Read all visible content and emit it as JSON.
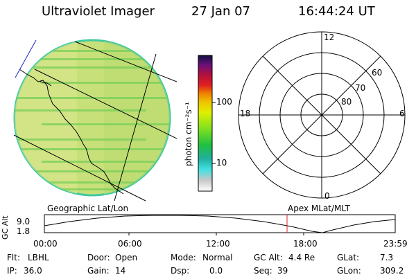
{
  "header": {
    "instrument": "Ultraviolet Imager",
    "date": "27 Jan 07",
    "time": "16:44:24 UT"
  },
  "colorbar": {
    "unit_label": "photon cm⁻²s⁻¹",
    "tick_labels": [
      "100",
      "10"
    ]
  },
  "polar_plot": {
    "mlt_labels": [
      "12",
      "18",
      "6",
      "0"
    ],
    "lat_labels": [
      "60",
      "70",
      "80"
    ]
  },
  "orbit": {
    "left_label": "Geographic Lat/Lon",
    "right_label": "Apex MLat/MLT",
    "y_axis_label": "GC Alt",
    "y_ticks": [
      "9.0",
      "1.8"
    ],
    "x_ticks": [
      "00:00",
      "06:00",
      "12:00",
      "18:00",
      "23:59"
    ],
    "current_time_marker": "16:44:24"
  },
  "info": {
    "row1": [
      {
        "key": "Flt:",
        "value": "LBHL"
      },
      {
        "key": "Door:",
        "value": "Open"
      },
      {
        "key": "Mode:",
        "value": "Normal"
      },
      {
        "key": "GC Alt:",
        "value": "4.4 Re"
      },
      {
        "key": "GLat:",
        "value": "7.3"
      }
    ],
    "row2": [
      {
        "key": "IP:",
        "value": "36.0"
      },
      {
        "key": "Gain:",
        "value": "14"
      },
      {
        "key": "Dsp:",
        "value": "0.0"
      },
      {
        "key": "Seq:",
        "value": "39"
      },
      {
        "key": "GLon:",
        "value": "309.2"
      }
    ]
  },
  "colors": {
    "disk_fill": "#c8e07a",
    "disk_edge": "#40c8a0",
    "stripe": "#7ccf5a",
    "marker": "#e02020"
  }
}
